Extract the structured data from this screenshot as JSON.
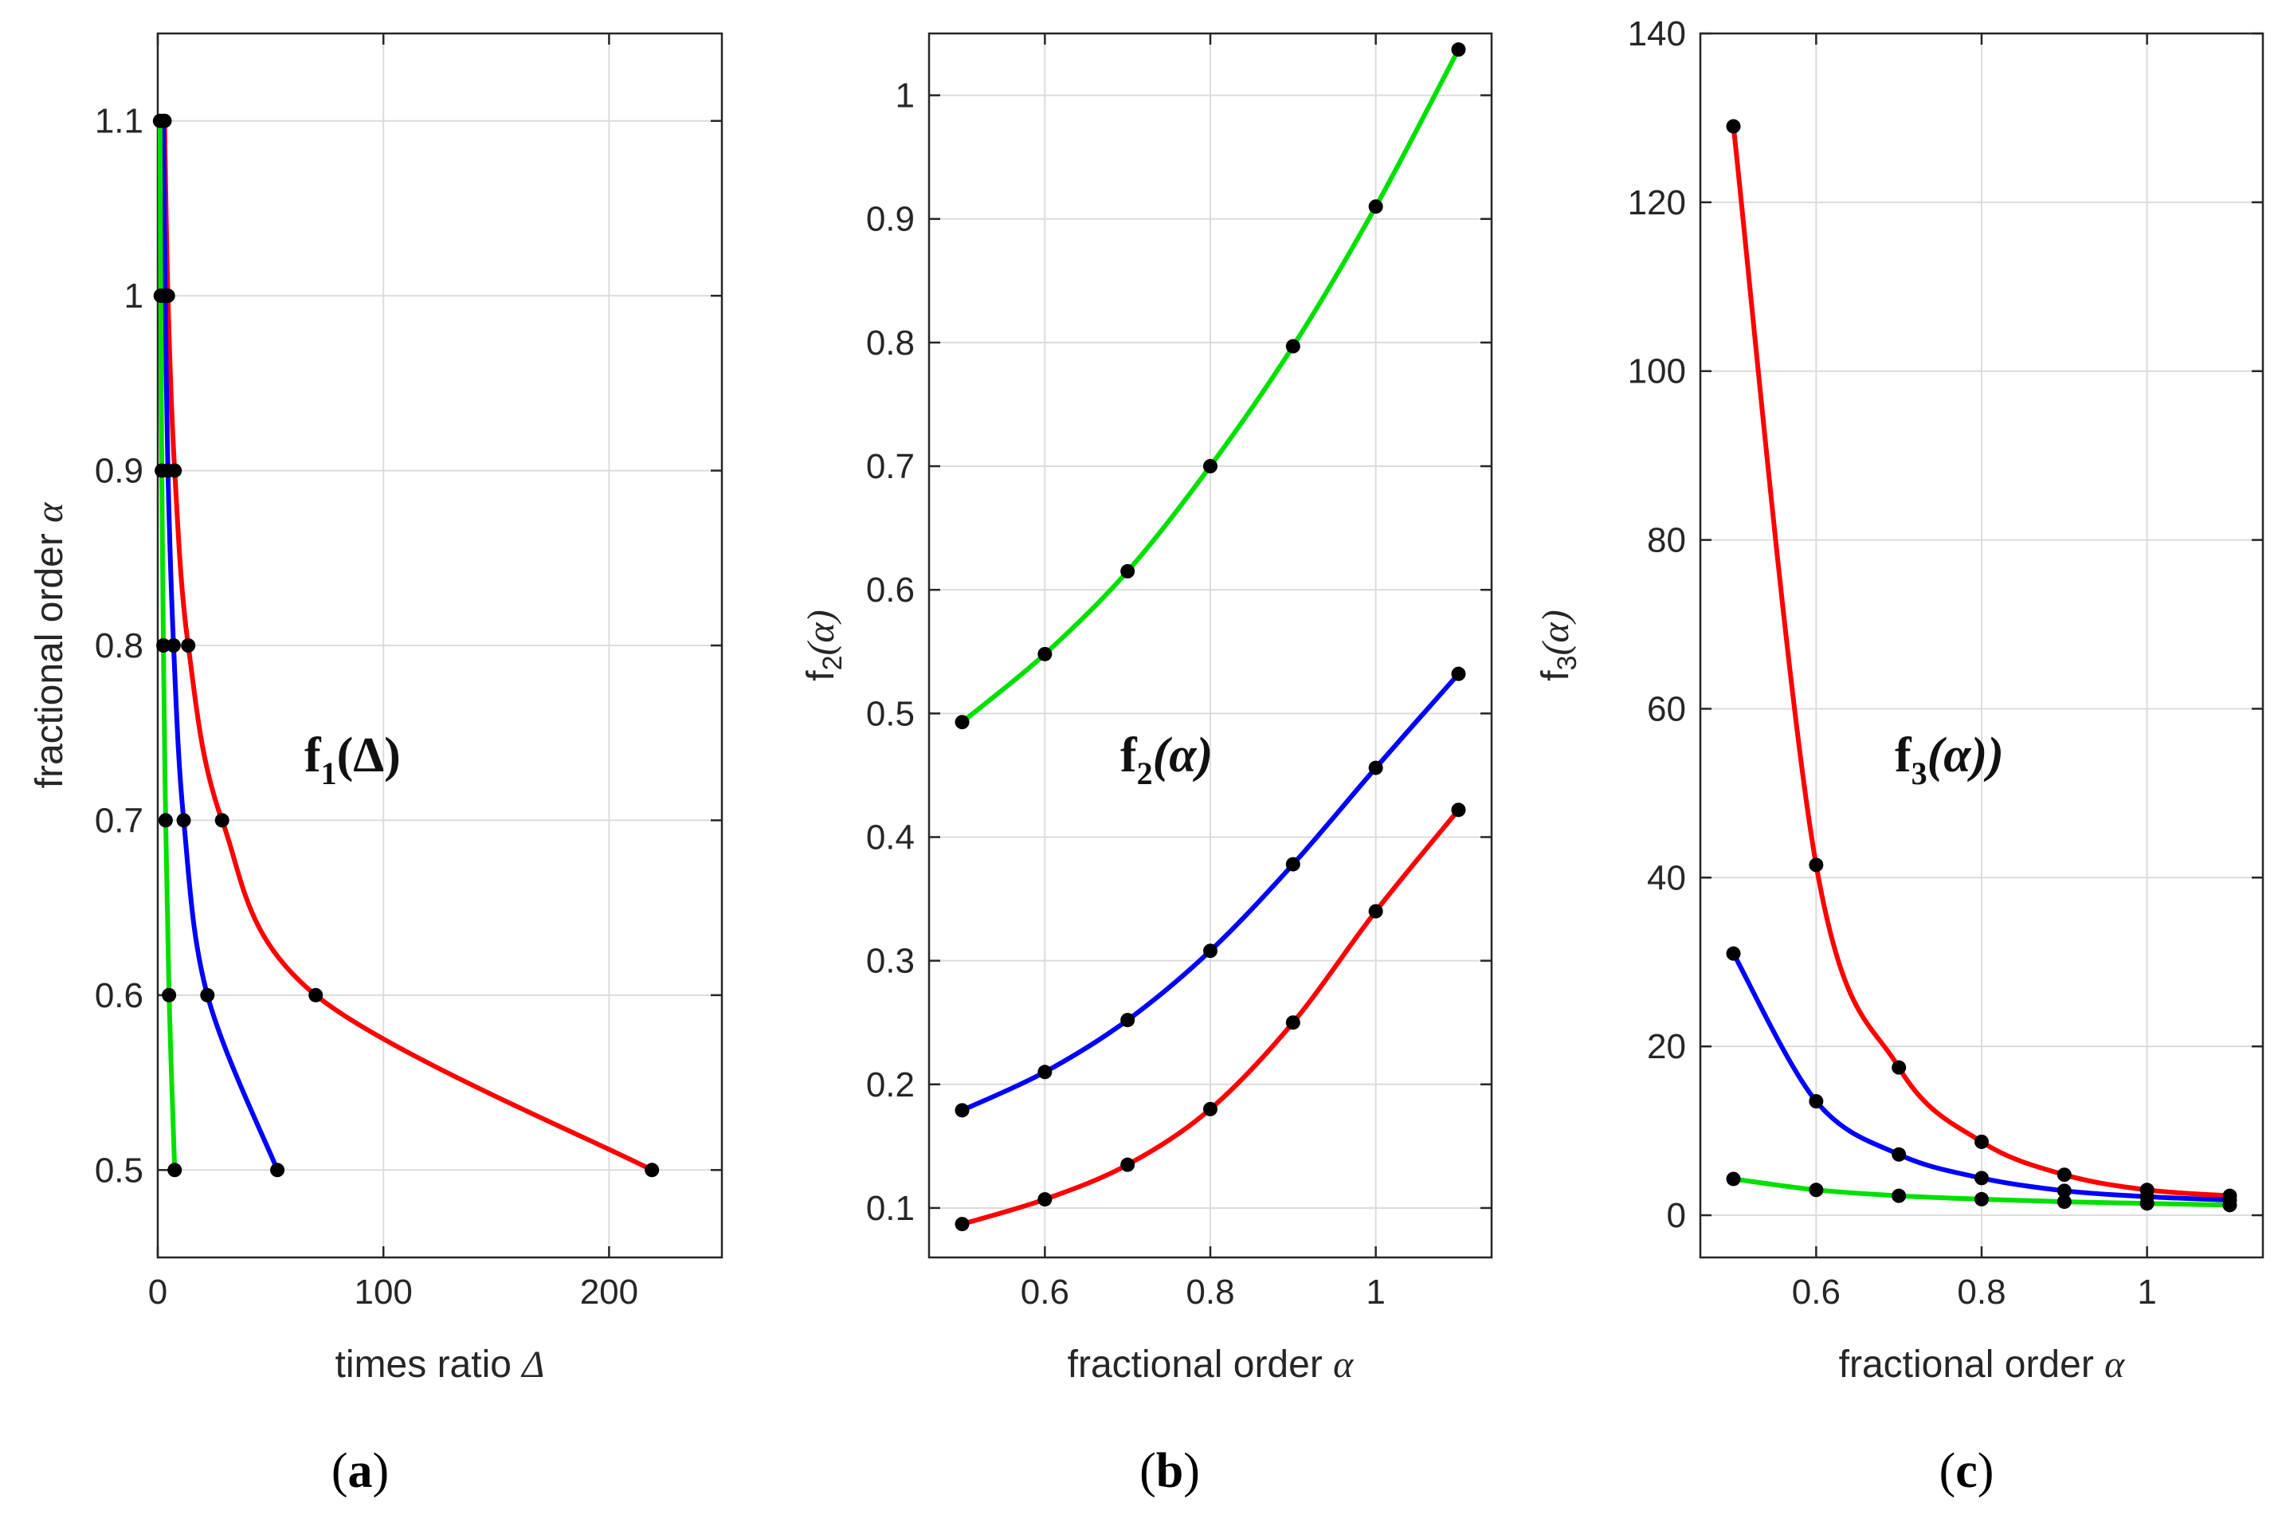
{
  "colors": {
    "red": "#ff0000",
    "blue": "#0000ff",
    "green": "#00e000",
    "marker": "#000000"
  },
  "chart_data": [
    {
      "type": "line",
      "panel": "a",
      "caption": {
        "open": "(",
        "letter": "a",
        "close": ")"
      },
      "annotation": {
        "main": "f",
        "sub": "1",
        "arg": "(Δ)"
      },
      "xlabel": {
        "text": "times ratio ",
        "sym": "Δ"
      },
      "ylabel": {
        "text": "fractional order ",
        "sym": "α"
      },
      "xlim": [
        0,
        250
      ],
      "ylim": [
        0.45,
        1.15
      ],
      "xticks": [
        0,
        100,
        200
      ],
      "xticklabels": [
        "0",
        "100",
        "200"
      ],
      "yticks": [
        0.5,
        0.6,
        0.7,
        0.8,
        0.9,
        1.0,
        1.1
      ],
      "yticklabels": [
        "0.5",
        "0.6",
        "0.7",
        "0.8",
        "0.9",
        "1",
        "1.1"
      ],
      "series": [
        {
          "name": "red",
          "color": "#ff0000",
          "x": [
            219,
            70,
            28.5,
            13.5,
            7.5,
            4.5,
            3
          ],
          "y": [
            0.5,
            0.6,
            0.7,
            0.8,
            0.9,
            1.0,
            1.1
          ]
        },
        {
          "name": "blue",
          "color": "#0000ff",
          "x": [
            53,
            22,
            11.5,
            7,
            4.5,
            3.3,
            2.5
          ],
          "y": [
            0.5,
            0.6,
            0.7,
            0.8,
            0.9,
            1.0,
            1.1
          ]
        },
        {
          "name": "green",
          "color": "#00e000",
          "x": [
            7.5,
            5,
            3.5,
            2.5,
            1.8,
            1.3,
            1
          ],
          "y": [
            0.5,
            0.6,
            0.7,
            0.8,
            0.9,
            1.0,
            1.1
          ]
        }
      ]
    },
    {
      "type": "line",
      "panel": "b",
      "caption": {
        "open": "(",
        "letter": "b",
        "close": ")"
      },
      "annotation": {
        "main": "f",
        "sub": "2",
        "arg": "(α)"
      },
      "xlabel": {
        "text": "fractional order ",
        "sym": "α"
      },
      "ylabel": {
        "text": "f",
        "sub": "2",
        "arg": "(α)"
      },
      "xlim": [
        0.46,
        1.14
      ],
      "ylim": [
        0.06,
        1.05
      ],
      "xticks": [
        0.6,
        0.8,
        1.0
      ],
      "xticklabels": [
        "0.6",
        "0.8",
        "1"
      ],
      "yticks": [
        0.1,
        0.2,
        0.3,
        0.4,
        0.5,
        0.6,
        0.7,
        0.8,
        0.9,
        1.0
      ],
      "yticklabels": [
        "0.1",
        "0.2",
        "0.3",
        "0.4",
        "0.5",
        "0.6",
        "0.7",
        "0.8",
        "0.9",
        "1"
      ],
      "series": [
        {
          "name": "green",
          "color": "#00e000",
          "x": [
            0.5,
            0.6,
            0.7,
            0.8,
            0.9,
            1.0,
            1.1
          ],
          "y": [
            0.493,
            0.548,
            0.615,
            0.7,
            0.797,
            0.91,
            1.037
          ]
        },
        {
          "name": "blue",
          "color": "#0000ff",
          "x": [
            0.5,
            0.6,
            0.7,
            0.8,
            0.9,
            1.0,
            1.1
          ],
          "y": [
            0.179,
            0.21,
            0.252,
            0.308,
            0.378,
            0.456,
            0.532
          ]
        },
        {
          "name": "red",
          "color": "#ff0000",
          "x": [
            0.5,
            0.6,
            0.7,
            0.8,
            0.9,
            1.0,
            1.1
          ],
          "y": [
            0.087,
            0.107,
            0.135,
            0.18,
            0.25,
            0.34,
            0.422
          ]
        }
      ]
    },
    {
      "type": "line",
      "panel": "c",
      "caption": {
        "open": "(",
        "letter": "c",
        "close": ")"
      },
      "annotation": {
        "main": "f",
        "sub": "3",
        "arg": "(α))"
      },
      "xlabel": {
        "text": "fractional order ",
        "sym": "α"
      },
      "ylabel": {
        "text": "f",
        "sub": "3",
        "arg": "(α)"
      },
      "xlim": [
        0.46,
        1.14
      ],
      "ylim": [
        -5,
        140
      ],
      "xticks": [
        0.6,
        0.8,
        1.0
      ],
      "xticklabels": [
        "0.6",
        "0.8",
        "1"
      ],
      "yticks": [
        0,
        20,
        40,
        60,
        80,
        100,
        120,
        140
      ],
      "yticklabels": [
        "0",
        "20",
        "40",
        "60",
        "80",
        "100",
        "120",
        "140"
      ],
      "series": [
        {
          "name": "red",
          "color": "#ff0000",
          "x": [
            0.5,
            0.6,
            0.7,
            0.8,
            0.9,
            1.0,
            1.1
          ],
          "y": [
            129,
            41.5,
            17.5,
            8.7,
            4.8,
            3.0,
            2.3
          ]
        },
        {
          "name": "blue",
          "color": "#0000ff",
          "x": [
            0.5,
            0.6,
            0.7,
            0.8,
            0.9,
            1.0,
            1.1
          ],
          "y": [
            31,
            13.5,
            7.2,
            4.4,
            2.9,
            2.2,
            1.8
          ]
        },
        {
          "name": "green",
          "color": "#00e000",
          "x": [
            0.5,
            0.6,
            0.7,
            0.8,
            0.9,
            1.0,
            1.1
          ],
          "y": [
            4.3,
            3.0,
            2.3,
            1.9,
            1.6,
            1.4,
            1.2
          ]
        }
      ]
    }
  ]
}
